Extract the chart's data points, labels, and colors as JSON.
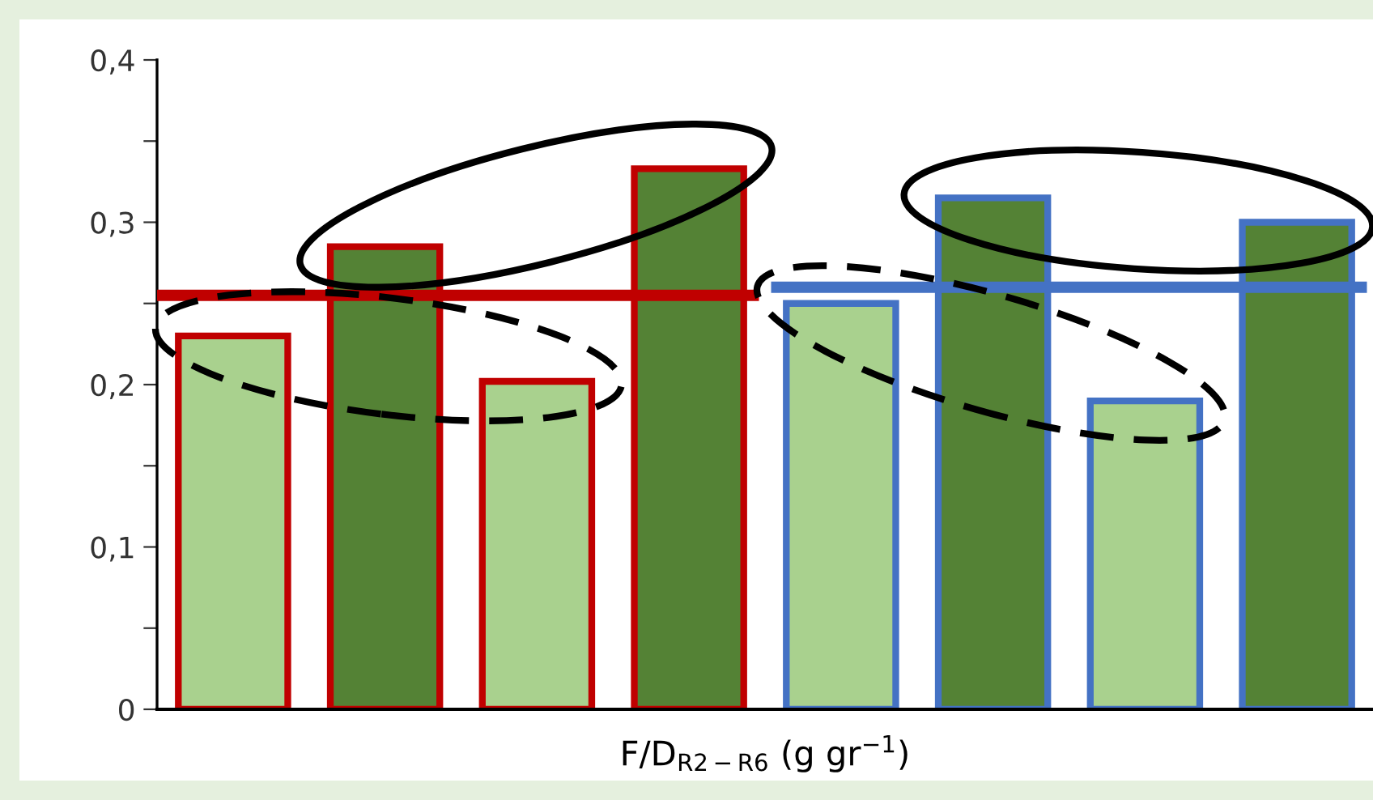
{
  "chart_data": {
    "type": "bar",
    "xlabel": "F/D$_{R2−R6}$ (g gr$^{−1}$)",
    "categories": [
      null,
      null,
      null,
      null,
      null,
      null,
      null,
      null
    ],
    "series": [
      {
        "colors": [
          "#a9d18e",
          "#548235",
          "#a9d18e",
          "#548235",
          "#a9d18e",
          "#548235",
          "#a9d18e",
          "#548235"
        ],
        "values": [
          0.23,
          0.285,
          0.202,
          0.333,
          0.25,
          0.315,
          0.19,
          0.3
        ]
      }
    ],
    "ref_lines": [
      {
        "axis": "y",
        "value": 0.255,
        "color": "#c00000"
      },
      {
        "axis": "y",
        "value": 0.26,
        "color": "#4472c4"
      }
    ],
    "ylim": [
      0,
      0.4
    ],
    "yticks": [
      {
        "value": 0,
        "label": "0"
      },
      {
        "value": 0.05,
        "label": null
      },
      {
        "value": 0.1,
        "label": "0,1"
      },
      {
        "value": 0.15,
        "label": null
      },
      {
        "value": 0.2,
        "label": "0,2"
      },
      {
        "value": 0.25,
        "label": null
      },
      {
        "value": 0.3,
        "label": "0,3"
      },
      {
        "value": 0.35,
        "label": null
      },
      {
        "value": 0.4,
        "label": "0,4"
      }
    ],
    "grid": false,
    "legend": false
  }
}
